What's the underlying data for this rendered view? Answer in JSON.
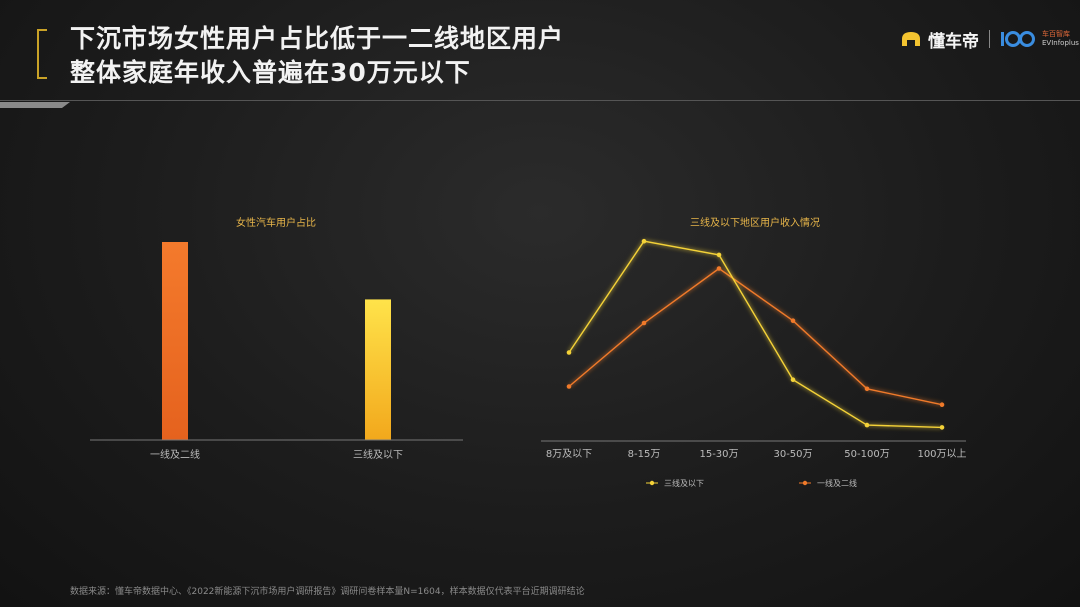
{
  "header": {
    "title_line1": "下沉市场女性用户占比低于一二线地区用户",
    "title_line2": "整体家庭年收入普遍在30万元以下"
  },
  "logo": {
    "brand": "懂车帝",
    "sub_top": "车百智库",
    "sub_bottom": "EVInfoplus"
  },
  "colors": {
    "accent_gold": "#c9a227",
    "orange": "#f07a2a",
    "yellow": "#f4d238"
  },
  "chart_data": [
    {
      "type": "bar",
      "title": "女性汽车用户占比",
      "categories": [
        "一线及二线",
        "三线及以下"
      ],
      "values": [
        100,
        71
      ],
      "ylim": [
        0,
        100
      ],
      "bar_colors": [
        "#f07a2a",
        "#f4c430"
      ],
      "grid": false
    },
    {
      "type": "line",
      "title": "三线及以下地区用户收入情况",
      "categories": [
        "8万及以下",
        "8-15万",
        "15-30万",
        "30-50万",
        "50-100万",
        "100万以上"
      ],
      "series": [
        {
          "name": "三线及以下",
          "color": "#f4d238",
          "values": [
            39,
            88,
            82,
            27,
            7,
            6
          ]
        },
        {
          "name": "一线及二线",
          "color": "#f07a2a",
          "values": [
            24,
            52,
            76,
            53,
            23,
            16
          ]
        }
      ],
      "ylim": [
        0,
        100
      ],
      "legend": "bottom",
      "grid": false
    }
  ],
  "footer": {
    "source": "数据来源：懂车帝数据中心、《2022新能源下沉市场用户调研报告》调研问卷样本量N=1604，样本数据仅代表平台近期调研结论"
  }
}
